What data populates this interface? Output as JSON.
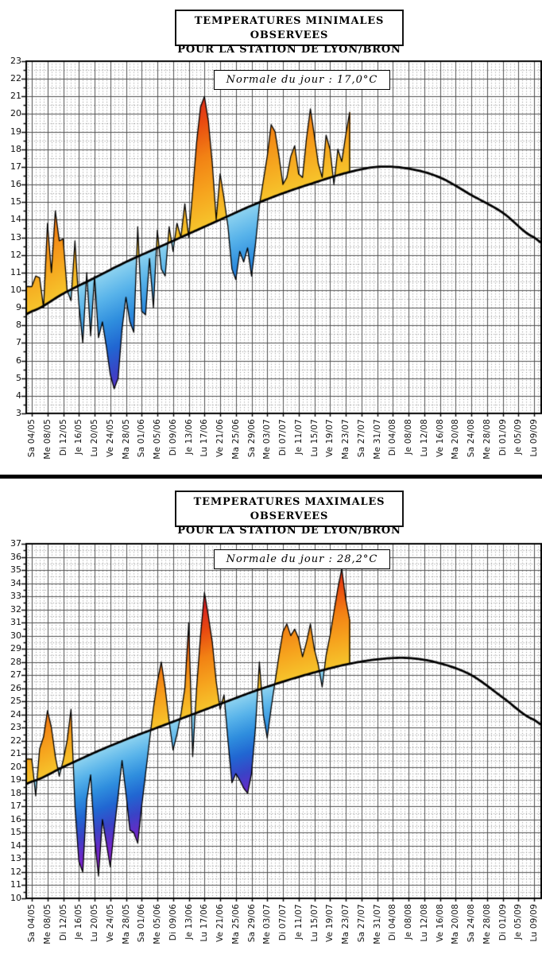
{
  "chart_data": [
    {
      "type": "area",
      "title": "TEMPERATURES MINIMALES OBSERVEES",
      "subtitle": "POUR LA STATION DE LYON/BRON",
      "annotation": "Normale du jour : 17,0°C",
      "ylim": [
        3,
        23
      ],
      "y_tick_labels": [
        "23",
        "22",
        "21",
        "20",
        "19",
        "18",
        "17",
        "16",
        "15",
        "14",
        "13",
        "12",
        "11",
        "10",
        "9",
        "8",
        "7",
        "6",
        "5",
        "4",
        "3"
      ],
      "x_start_date": "04/05",
      "x_tick_interval_days": 4,
      "x_tick_labels": [
        "Sa 04/05",
        "Me 08/05",
        "Di 12/05",
        "Je 16/05",
        "Lu 20/05",
        "Ve 24/05",
        "Ma 28/05",
        "Sa 01/06",
        "Me 05/06",
        "Di 09/06",
        "Je 13/06",
        "Lu 17/06",
        "Ve 21/06",
        "Ma 25/06",
        "Sa 29/06",
        "Me 03/07",
        "Di 07/07",
        "Je 11/07",
        "Lu 15/07",
        "Ve 19/07",
        "Ma 23/07",
        "Sa 27/07",
        "Me 31/07",
        "Di 04/08",
        "Je 08/08",
        "Lu 12/08",
        "Ve 16/08",
        "Ma 20/08",
        "Sa 24/08",
        "Me 28/08",
        "Di 01/09",
        "Je 05/09",
        "Lu 09/09"
      ],
      "grid": {
        "h_solid_step_deg": 1,
        "h_dotted_step_deg": 0.5,
        "v_solid_step_days": 4,
        "v_dotted_step_days": 1
      },
      "legend_position": "none",
      "series": [
        {
          "name": "temperature minimale observee",
          "kind": "daily",
          "values": [
            10.2,
            10.8,
            10.7,
            9.0,
            13.8,
            11.0,
            14.5,
            12.8,
            12.9,
            10.0,
            9.4,
            12.8,
            9.2,
            7.0,
            11.0,
            7.4,
            10.8,
            7.3,
            8.2,
            6.8,
            5.2,
            4.4,
            5.0,
            7.8,
            9.6,
            8.2,
            7.6,
            13.6,
            8.8,
            8.6,
            11.8,
            9.0,
            13.4,
            11.2,
            10.8,
            13.6,
            12.2,
            13.8,
            13.0,
            14.9,
            13.0,
            15.6,
            18.4,
            20.4,
            21.0,
            19.6,
            17.2,
            14.0,
            16.6,
            15.2,
            13.6,
            11.2,
            10.6,
            12.2,
            11.6,
            12.4,
            10.8,
            12.6,
            14.8,
            16.2,
            17.6,
            19.4,
            19.0,
            17.6,
            16.0,
            16.4,
            17.6,
            18.2,
            16.6,
            16.4,
            18.6,
            20.3,
            18.8,
            17.2,
            16.4,
            18.8,
            18.0,
            16.0,
            18.0,
            17.3,
            18.8,
            20.1
          ]
        },
        {
          "name": "normale",
          "kind": "smooth",
          "control_interval_days": 8,
          "values": [
            8.8,
            9.8,
            10.7,
            11.6,
            12.4,
            13.2,
            14.0,
            14.8,
            15.5,
            16.1,
            16.65,
            17.0,
            16.9,
            16.4,
            15.4,
            14.4,
            13.0
          ]
        }
      ],
      "fill_colors": {
        "above_normal_stops": [
          [
            0,
            "#f6c52c"
          ],
          [
            2,
            "#f6a41e"
          ],
          [
            4,
            "#f28214"
          ],
          [
            6,
            "#e94b10"
          ],
          [
            8,
            "#d92220"
          ],
          [
            10,
            "#ce1c2e"
          ]
        ],
        "below_normal_stops": [
          [
            0,
            "#8ed3f0"
          ],
          [
            1.5,
            "#58b3ea"
          ],
          [
            3,
            "#2f8ede"
          ],
          [
            4.5,
            "#2167d2"
          ],
          [
            6,
            "#3a43c6"
          ],
          [
            7.5,
            "#6c29c8"
          ],
          [
            9,
            "#9120d5"
          ],
          [
            11,
            "#a81fd9"
          ]
        ]
      }
    },
    {
      "type": "area",
      "title": "TEMPERATURES MAXIMALES OBSERVEES",
      "subtitle": "POUR LA STATION DE LYON/BRON",
      "annotation": "Normale du jour : 28,2°C",
      "ylim": [
        10,
        37
      ],
      "y_tick_labels": [
        "37",
        "36",
        "35",
        "34",
        "33",
        "32",
        "31",
        "30",
        "29",
        "28",
        "27",
        "26",
        "25",
        "24",
        "23",
        "22",
        "21",
        "20",
        "19",
        "18",
        "17",
        "16",
        "15",
        "14",
        "13",
        "12",
        "11",
        "10"
      ],
      "x_start_date": "04/05",
      "x_tick_interval_days": 4,
      "x_tick_labels": [
        "Sa 04/05",
        "Me 08/05",
        "Di 12/05",
        "Je 16/05",
        "Lu 20/05",
        "Ve 24/05",
        "Ma 28/05",
        "Sa 01/06",
        "Me 05/06",
        "Di 09/06",
        "Je 13/06",
        "Lu 17/06",
        "Ve 21/06",
        "Ma 25/06",
        "Sa 29/06",
        "Me 03/07",
        "Di 07/07",
        "Je 11/07",
        "Lu 15/07",
        "Ve 19/07",
        "Ma 23/07",
        "Sa 27/07",
        "Me 31/07",
        "Di 04/08",
        "Je 08/08",
        "Lu 12/08",
        "Ve 16/08",
        "Ma 20/08",
        "Sa 24/08",
        "Me 28/08",
        "Di 01/09",
        "Je 05/09",
        "Lu 09/09"
      ],
      "grid": {
        "h_solid_step_deg": 1,
        "h_dotted_step_deg": 0.5,
        "v_solid_step_days": 4,
        "v_dotted_step_days": 1
      },
      "legend_position": "none",
      "series": [
        {
          "name": "temperature maximale observee",
          "kind": "daily",
          "values": [
            20.6,
            17.8,
            21.4,
            22.3,
            24.3,
            23.0,
            20.8,
            19.3,
            20.5,
            22.0,
            24.4,
            17.0,
            12.8,
            12.0,
            17.5,
            19.4,
            14.5,
            11.7,
            16.0,
            14.2,
            12.4,
            15.2,
            17.8,
            20.5,
            18.0,
            15.2,
            15.0,
            14.2,
            17.0,
            19.5,
            22.0,
            24.5,
            26.5,
            28.0,
            26.0,
            23.5,
            21.3,
            22.5,
            24.0,
            26.0,
            31.0,
            20.8,
            26.0,
            30.0,
            33.3,
            31.5,
            29.5,
            26.5,
            24.4,
            25.5,
            22.0,
            18.8,
            19.5,
            19.0,
            18.4,
            18.0,
            19.5,
            23.0,
            28.0,
            24.0,
            22.2,
            24.5,
            26.5,
            28.5,
            30.3,
            30.9,
            30.0,
            30.5,
            29.8,
            28.4,
            29.5,
            30.9,
            29.0,
            27.8,
            26.1,
            28.5,
            30.0,
            31.8,
            33.6,
            35.1,
            32.8,
            31.2
          ]
        },
        {
          "name": "normale",
          "kind": "smooth",
          "control_interval_days": 8,
          "values": [
            18.9,
            20.0,
            21.1,
            22.1,
            23.0,
            23.9,
            24.8,
            25.7,
            26.5,
            27.2,
            27.8,
            28.2,
            28.3,
            27.9,
            27.0,
            25.3,
            23.6
          ]
        }
      ],
      "fill_colors": {
        "above_normal_stops": [
          [
            0,
            "#f6c52c"
          ],
          [
            2,
            "#f6a41e"
          ],
          [
            4,
            "#f28214"
          ],
          [
            6,
            "#e94b10"
          ],
          [
            8,
            "#d92220"
          ],
          [
            10,
            "#ce1c2e"
          ]
        ],
        "below_normal_stops": [
          [
            0,
            "#8ed3f0"
          ],
          [
            1.5,
            "#58b3ea"
          ],
          [
            3,
            "#2f8ede"
          ],
          [
            4.5,
            "#2167d2"
          ],
          [
            6,
            "#3a43c6"
          ],
          [
            7.5,
            "#6c29c8"
          ],
          [
            9,
            "#9120d5"
          ],
          [
            11,
            "#a81fd9"
          ]
        ]
      }
    }
  ]
}
